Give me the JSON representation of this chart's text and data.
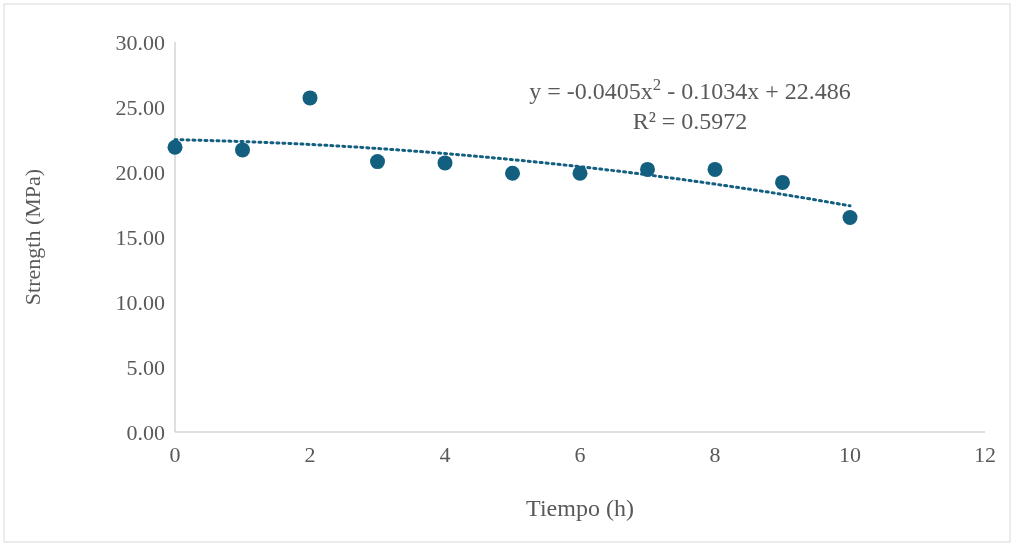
{
  "chart_data": {
    "type": "scatter",
    "xlabel": "Tiempo (h)",
    "ylabel": "Strength (MPa)",
    "x": [
      0,
      1,
      2,
      3,
      4,
      5,
      6,
      7,
      8,
      9,
      10
    ],
    "series": [
      {
        "color": "#135f7f",
        "marker": "circle",
        "values": [
          21.9,
          21.7,
          25.7,
          20.8,
          20.7,
          19.9,
          19.9,
          20.2,
          20.2,
          19.2,
          16.5
        ]
      },
      {
        "type": "line",
        "color": "#135f7f",
        "line_style": "dotted",
        "values": [
          22.49,
          22.34,
          22.12,
          21.81,
          21.42,
          20.95,
          20.41,
          19.78,
          19.07,
          18.28,
          17.4
        ]
      }
    ],
    "xlim": [
      0,
      12
    ],
    "xticks": [
      0,
      2,
      4,
      6,
      8,
      10,
      12
    ],
    "ylim": [
      0,
      30
    ],
    "yticks": [
      {
        "value": 0,
        "label": "0.00"
      },
      {
        "value": 5,
        "label": "5.00"
      },
      {
        "value": 10,
        "label": "10.00"
      },
      {
        "value": 15,
        "label": "15.00"
      },
      {
        "value": 20,
        "label": "20.00"
      },
      {
        "value": 25,
        "label": "25.00"
      },
      {
        "value": 30,
        "label": "30.00"
      }
    ],
    "grid": false,
    "annotations": [
      "y = -0.0405x$^{2}$ - 0.1034x + 22.486",
      "R² = 0.5972"
    ]
  }
}
